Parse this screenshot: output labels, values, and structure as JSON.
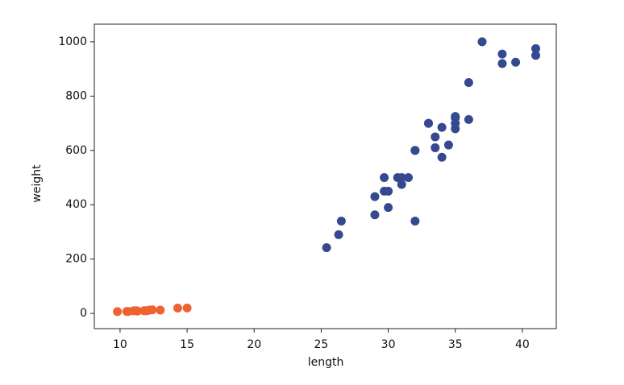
{
  "chart_data": {
    "type": "scatter",
    "xlabel": "length",
    "ylabel": "weight",
    "xlim": [
      8.08,
      42.53
    ],
    "xticks": [
      10,
      15,
      20,
      25,
      30,
      35,
      40
    ],
    "ylim": [
      -56,
      1065
    ],
    "yticks": [
      0,
      200,
      400,
      600,
      800,
      1000
    ],
    "series": [
      {
        "color": "#34498f",
        "x": [
          25.4,
          26.3,
          26.5,
          29.0,
          29.0,
          29.7,
          29.7,
          30.0,
          30.0,
          30.7,
          31.0,
          31.0,
          31.5,
          32.0,
          32.0,
          32.0,
          33.0,
          33.0,
          33.5,
          33.5,
          34.0,
          34.0,
          34.5,
          35.0,
          35.0,
          35.0,
          35.0,
          36.0,
          36.0,
          37.0,
          38.5,
          38.5,
          39.5,
          41.0,
          41.0
        ],
        "y": [
          242.0,
          290.0,
          340.0,
          363.0,
          430.0,
          450.0,
          500.0,
          390.0,
          450.0,
          500.0,
          475.0,
          500.0,
          500.0,
          340.0,
          600.0,
          600.0,
          700.0,
          700.0,
          610.0,
          650.0,
          575.0,
          685.0,
          620.0,
          680.0,
          700.0,
          725.0,
          720.0,
          714.0,
          850.0,
          1000.0,
          920.0,
          955.0,
          925.0,
          975.0,
          950.0
        ]
      },
      {
        "color": "#f0622f",
        "x": [
          9.8,
          10.5,
          10.6,
          11.0,
          11.2,
          11.3,
          11.8,
          11.8,
          12.0,
          12.2,
          12.4,
          13.0,
          14.3,
          15.0
        ],
        "y": [
          6.7,
          7.5,
          7.0,
          9.7,
          9.8,
          8.7,
          10.0,
          9.9,
          9.8,
          12.2,
          13.4,
          12.2,
          19.7,
          19.9
        ]
      }
    ]
  }
}
